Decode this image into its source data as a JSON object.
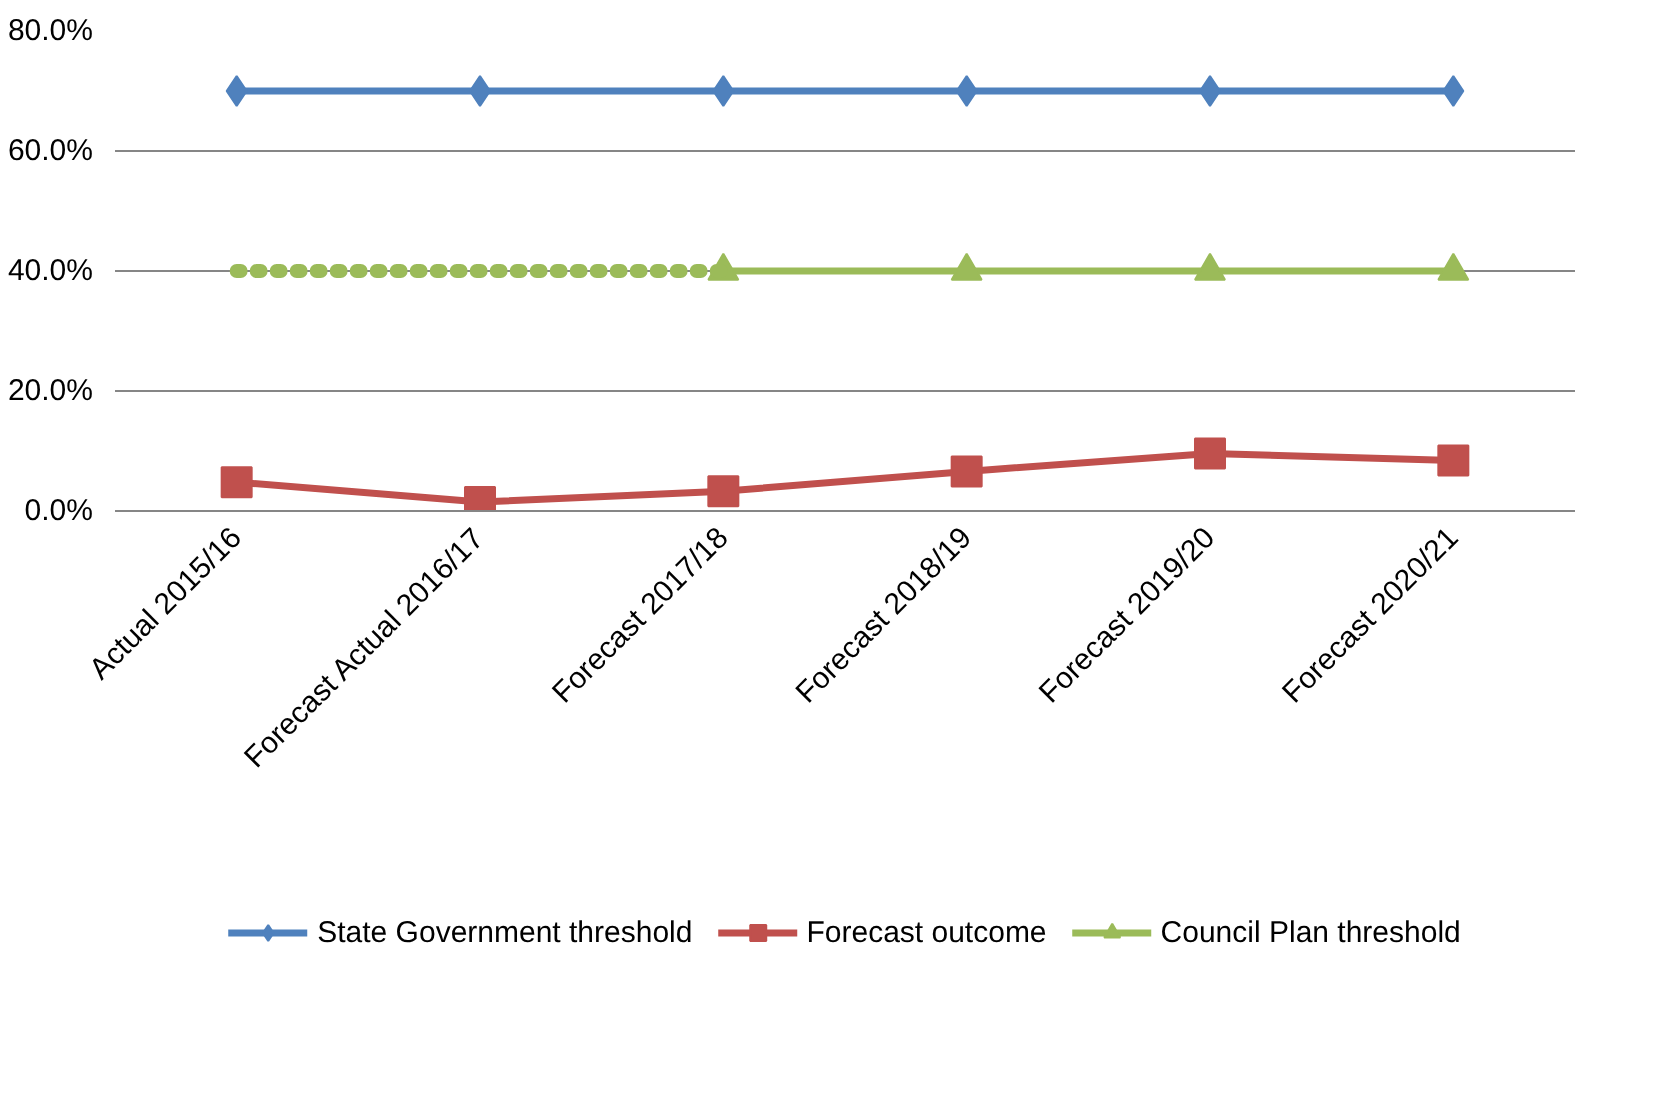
{
  "chart_data": {
    "type": "line",
    "categories": [
      "Actual 2015/16",
      "Forecast Actual 2016/17",
      "Forecast 2017/18",
      "Forecast 2018/19",
      "Forecast 2019/20",
      "Forecast 2020/21"
    ],
    "ylim": [
      0,
      80
    ],
    "yticks": [
      {
        "value": 0,
        "label": "0.0%"
      },
      {
        "value": 20,
        "label": "20.0%"
      },
      {
        "value": 40,
        "label": "40.0%"
      },
      {
        "value": 60,
        "label": "60.0%"
      },
      {
        "value": 80,
        "label": "80.0%"
      }
    ],
    "grid": "y",
    "legend": "bottom",
    "series": [
      {
        "name": "State Government threshold",
        "color": "#4f81bd",
        "marker": "diamond",
        "line_style": "solid",
        "values": [
          70,
          70,
          70,
          70,
          70,
          70
        ]
      },
      {
        "name": "Forecast outcome",
        "color": "#c0504d",
        "marker": "square",
        "line_style": "solid",
        "values": [
          4.8,
          1.5,
          3.3,
          6.6,
          9.6,
          8.4
        ]
      },
      {
        "name": "Council Plan threshold",
        "color": "#9bbb59",
        "marker": "triangle",
        "line_style": "solid",
        "values": [
          null,
          null,
          40,
          40,
          40,
          40
        ]
      },
      {
        "color": "#9bbb59",
        "marker": "none",
        "line_style": "dotted",
        "values": [
          40,
          40,
          40,
          null,
          null,
          null
        ]
      }
    ]
  }
}
